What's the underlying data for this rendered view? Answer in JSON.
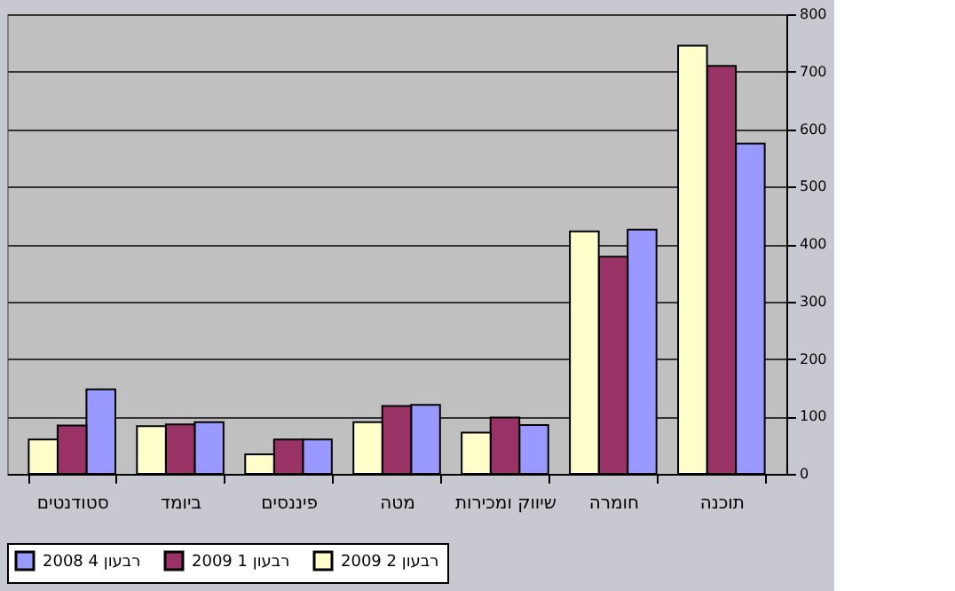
{
  "chart_data": {
    "type": "bar",
    "categories": [
      "סטודנטים",
      "ביומד",
      "פיננסים",
      "מטה",
      "שיווק ומכירות",
      "חומרה",
      "תוכנה"
    ],
    "series": [
      {
        "name": "רבעון 4 2008",
        "color": "#9999ff",
        "values": [
          147,
          90,
          60,
          120,
          85,
          425,
          575
        ]
      },
      {
        "name": "רבעון 1 2009",
        "color": "#993366",
        "values": [
          84,
          86,
          60,
          118,
          98,
          378,
          710
        ]
      },
      {
        "name": "רבעון 2 2009",
        "color": "#ffffcc",
        "values": [
          60,
          83,
          34,
          90,
          72,
          422,
          745
        ]
      }
    ],
    "ylim": [
      0,
      800
    ],
    "yticks": [
      0,
      100,
      200,
      300,
      400,
      500,
      600,
      700,
      800
    ],
    "grid": "y",
    "legend": "bottom"
  }
}
